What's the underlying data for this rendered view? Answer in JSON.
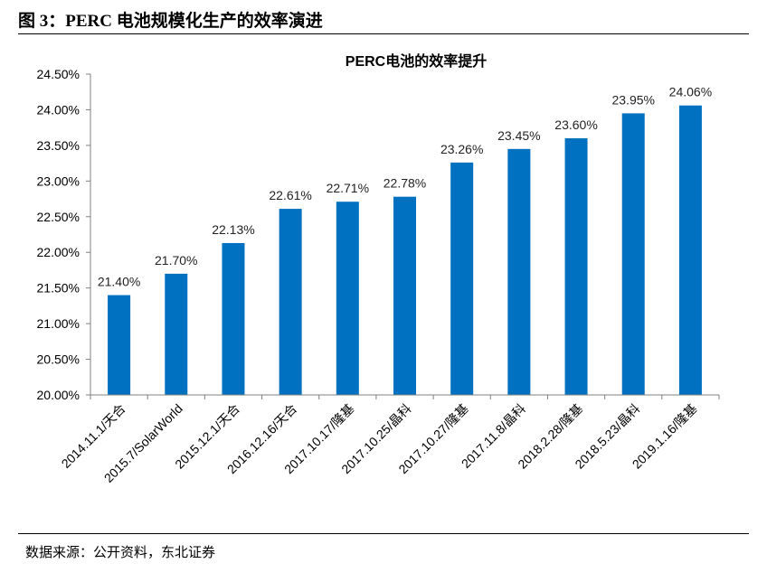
{
  "figure": {
    "title": "图 3：PERC 电池规模化生产的效率演进",
    "source": "数据来源：公开资料，东北证券"
  },
  "colors": {
    "bar": "#0070C0",
    "axis": "#808080"
  },
  "chart_data": {
    "type": "bar",
    "title": "PERC电池的效率提升",
    "categories": [
      "2014.11.1/天合",
      "2015.7/SolarWorld",
      "2015.12.1/天合",
      "2016.12.16/天合",
      "2017.10.17/隆基",
      "2017.10.25/晶科",
      "2017.10.27/隆基",
      "2017.11.8/晶科",
      "2018.2.28/隆基",
      "2018.5.23/晶科",
      "2019.1.16/隆基"
    ],
    "values": [
      21.4,
      21.7,
      22.13,
      22.61,
      22.71,
      22.78,
      23.26,
      23.45,
      23.6,
      23.95,
      24.06
    ],
    "value_labels": [
      "21.40%",
      "21.70%",
      "22.13%",
      "22.61%",
      "22.71%",
      "22.78%",
      "23.26%",
      "23.45%",
      "23.60%",
      "23.95%",
      "24.06%"
    ],
    "yticks": [
      20.0,
      20.5,
      21.0,
      21.5,
      22.0,
      22.5,
      23.0,
      23.5,
      24.0,
      24.5
    ],
    "ytick_labels": [
      "20.00%",
      "20.50%",
      "21.00%",
      "21.50%",
      "22.00%",
      "22.50%",
      "23.00%",
      "23.50%",
      "24.00%",
      "24.50%"
    ],
    "ylim": [
      20.0,
      24.5
    ],
    "xlabel": "",
    "ylabel": "",
    "grid": false,
    "legend": "none"
  }
}
